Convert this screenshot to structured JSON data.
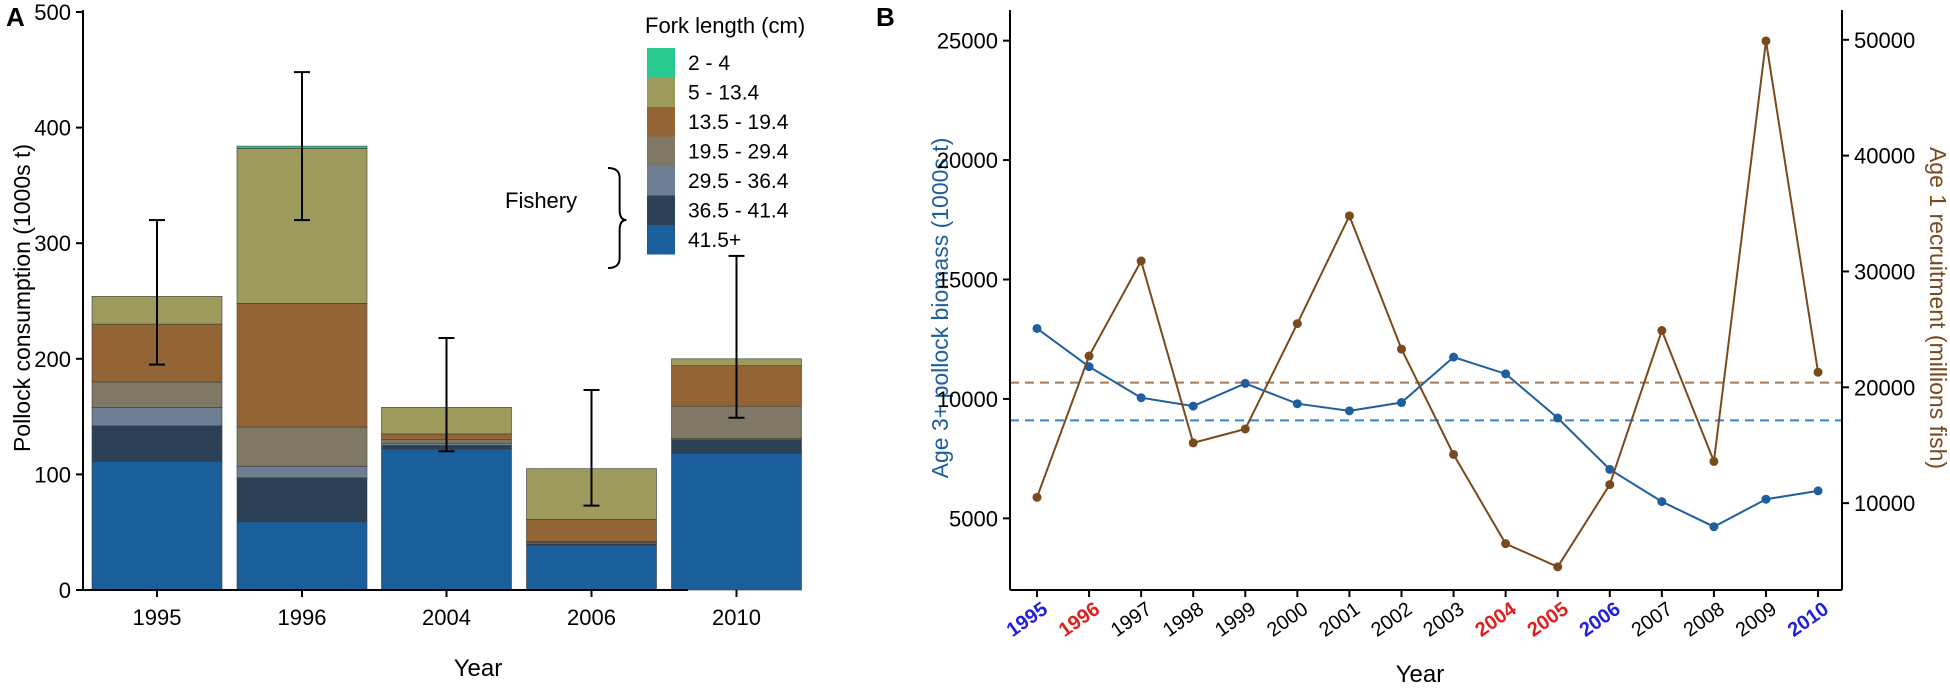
{
  "figure": {
    "colors": {
      "axis": "#000000",
      "biomass": "#1f5fa0",
      "recruitment": "#7a4a1f",
      "ref_biomass": "#3a83c4",
      "ref_recruitment": "#a07a5a",
      "year_blue": "#1f1fdd",
      "year_red": "#e01f1f"
    }
  },
  "chart_data": [
    {
      "panel_label": "A",
      "type": "bar",
      "stacked": true,
      "title": "",
      "xlabel": "Year",
      "ylabel": "Pollock consumption (1000s t)",
      "ylim": [
        0,
        500
      ],
      "yticks": [
        "0",
        "100",
        "200",
        "300",
        "400",
        "500"
      ],
      "categories": [
        "1995",
        "1996",
        "2004",
        "2006",
        "2010"
      ],
      "legend_title": "Fork length (cm)",
      "legend_position": "top-right",
      "legend_bracket_label": "Fishery",
      "series": [
        {
          "name": "41.5+",
          "color": "#1a5e9b",
          "values": [
            111,
            59,
            122,
            39,
            118
          ]
        },
        {
          "name": "36.5 - 41.4",
          "color": "#2b3f55",
          "values": [
            31,
            38,
            3,
            1,
            12
          ]
        },
        {
          "name": "29.5 - 36.4",
          "color": "#6f7f93",
          "values": [
            16,
            10,
            2,
            1,
            1
          ]
        },
        {
          "name": "19.5 - 29.4",
          "color": "#7f7864",
          "values": [
            22,
            34,
            3,
            1,
            28
          ]
        },
        {
          "name": "13.5 - 19.4",
          "color": "#946534",
          "values": [
            50,
            107,
            5,
            19,
            35
          ]
        },
        {
          "name": "5 - 13.4",
          "color": "#9c9a5d",
          "values": [
            24,
            134,
            23,
            44,
            6
          ]
        },
        {
          "name": "2 - 4",
          "color": "#27c98f",
          "values": [
            0,
            2,
            0,
            0,
            0
          ]
        }
      ],
      "error_bars": [
        {
          "category": "1995",
          "low": 195,
          "high": 320
        },
        {
          "category": "1996",
          "low": 320,
          "high": 448
        },
        {
          "category": "2004",
          "low": 120,
          "high": 218
        },
        {
          "category": "2006",
          "low": 73,
          "high": 173
        },
        {
          "category": "2010",
          "low": 149,
          "high": 289
        }
      ]
    },
    {
      "panel_label": "B",
      "type": "line",
      "title": "",
      "xlabel": "Year",
      "ylabel": "Age 3+ pollock biomass (1000s t)",
      "ylabel_right": "Age 1 recruitment (millions fish)",
      "ylim": [
        2000,
        26200
      ],
      "ylim_right": [
        2500,
        52400
      ],
      "yticks": [
        "5000",
        "10000",
        "15000",
        "20000",
        "25000"
      ],
      "yticks_right": [
        "10000",
        "20000",
        "30000",
        "40000",
        "50000"
      ],
      "x": [
        "1995",
        "1996",
        "1997",
        "1998",
        "1999",
        "2000",
        "2001",
        "2002",
        "2003",
        "2004",
        "2005",
        "2006",
        "2007",
        "2008",
        "2009",
        "2010"
      ],
      "x_highlight": [
        "blue",
        "red",
        "",
        "",
        "",
        "",
        "",
        "",
        "",
        "red",
        "red",
        "blue",
        "",
        "",
        "",
        "blue"
      ],
      "series": [
        {
          "name": "Age 3+ pollock biomass",
          "axis": "left",
          "color": "#1f5fa0",
          "values": [
            12950,
            11350,
            10050,
            9700,
            10650,
            9800,
            9500,
            9850,
            11750,
            11050,
            9200,
            7050,
            5700,
            4650,
            5800,
            6150
          ]
        },
        {
          "name": "Age 1 recruitment",
          "axis": "right",
          "color": "#7a4a1f",
          "values": [
            10500,
            22700,
            30900,
            15200,
            16400,
            25500,
            34800,
            23300,
            14200,
            6500,
            4500,
            11600,
            24900,
            13600,
            49900,
            21300
          ]
        }
      ],
      "reference_lines": [
        {
          "axis": "left",
          "value": 9100,
          "style": "dashed",
          "color": "#3a83c4"
        },
        {
          "axis": "right",
          "value": 20400,
          "style": "dashed",
          "color": "#a07a5a"
        }
      ]
    }
  ]
}
